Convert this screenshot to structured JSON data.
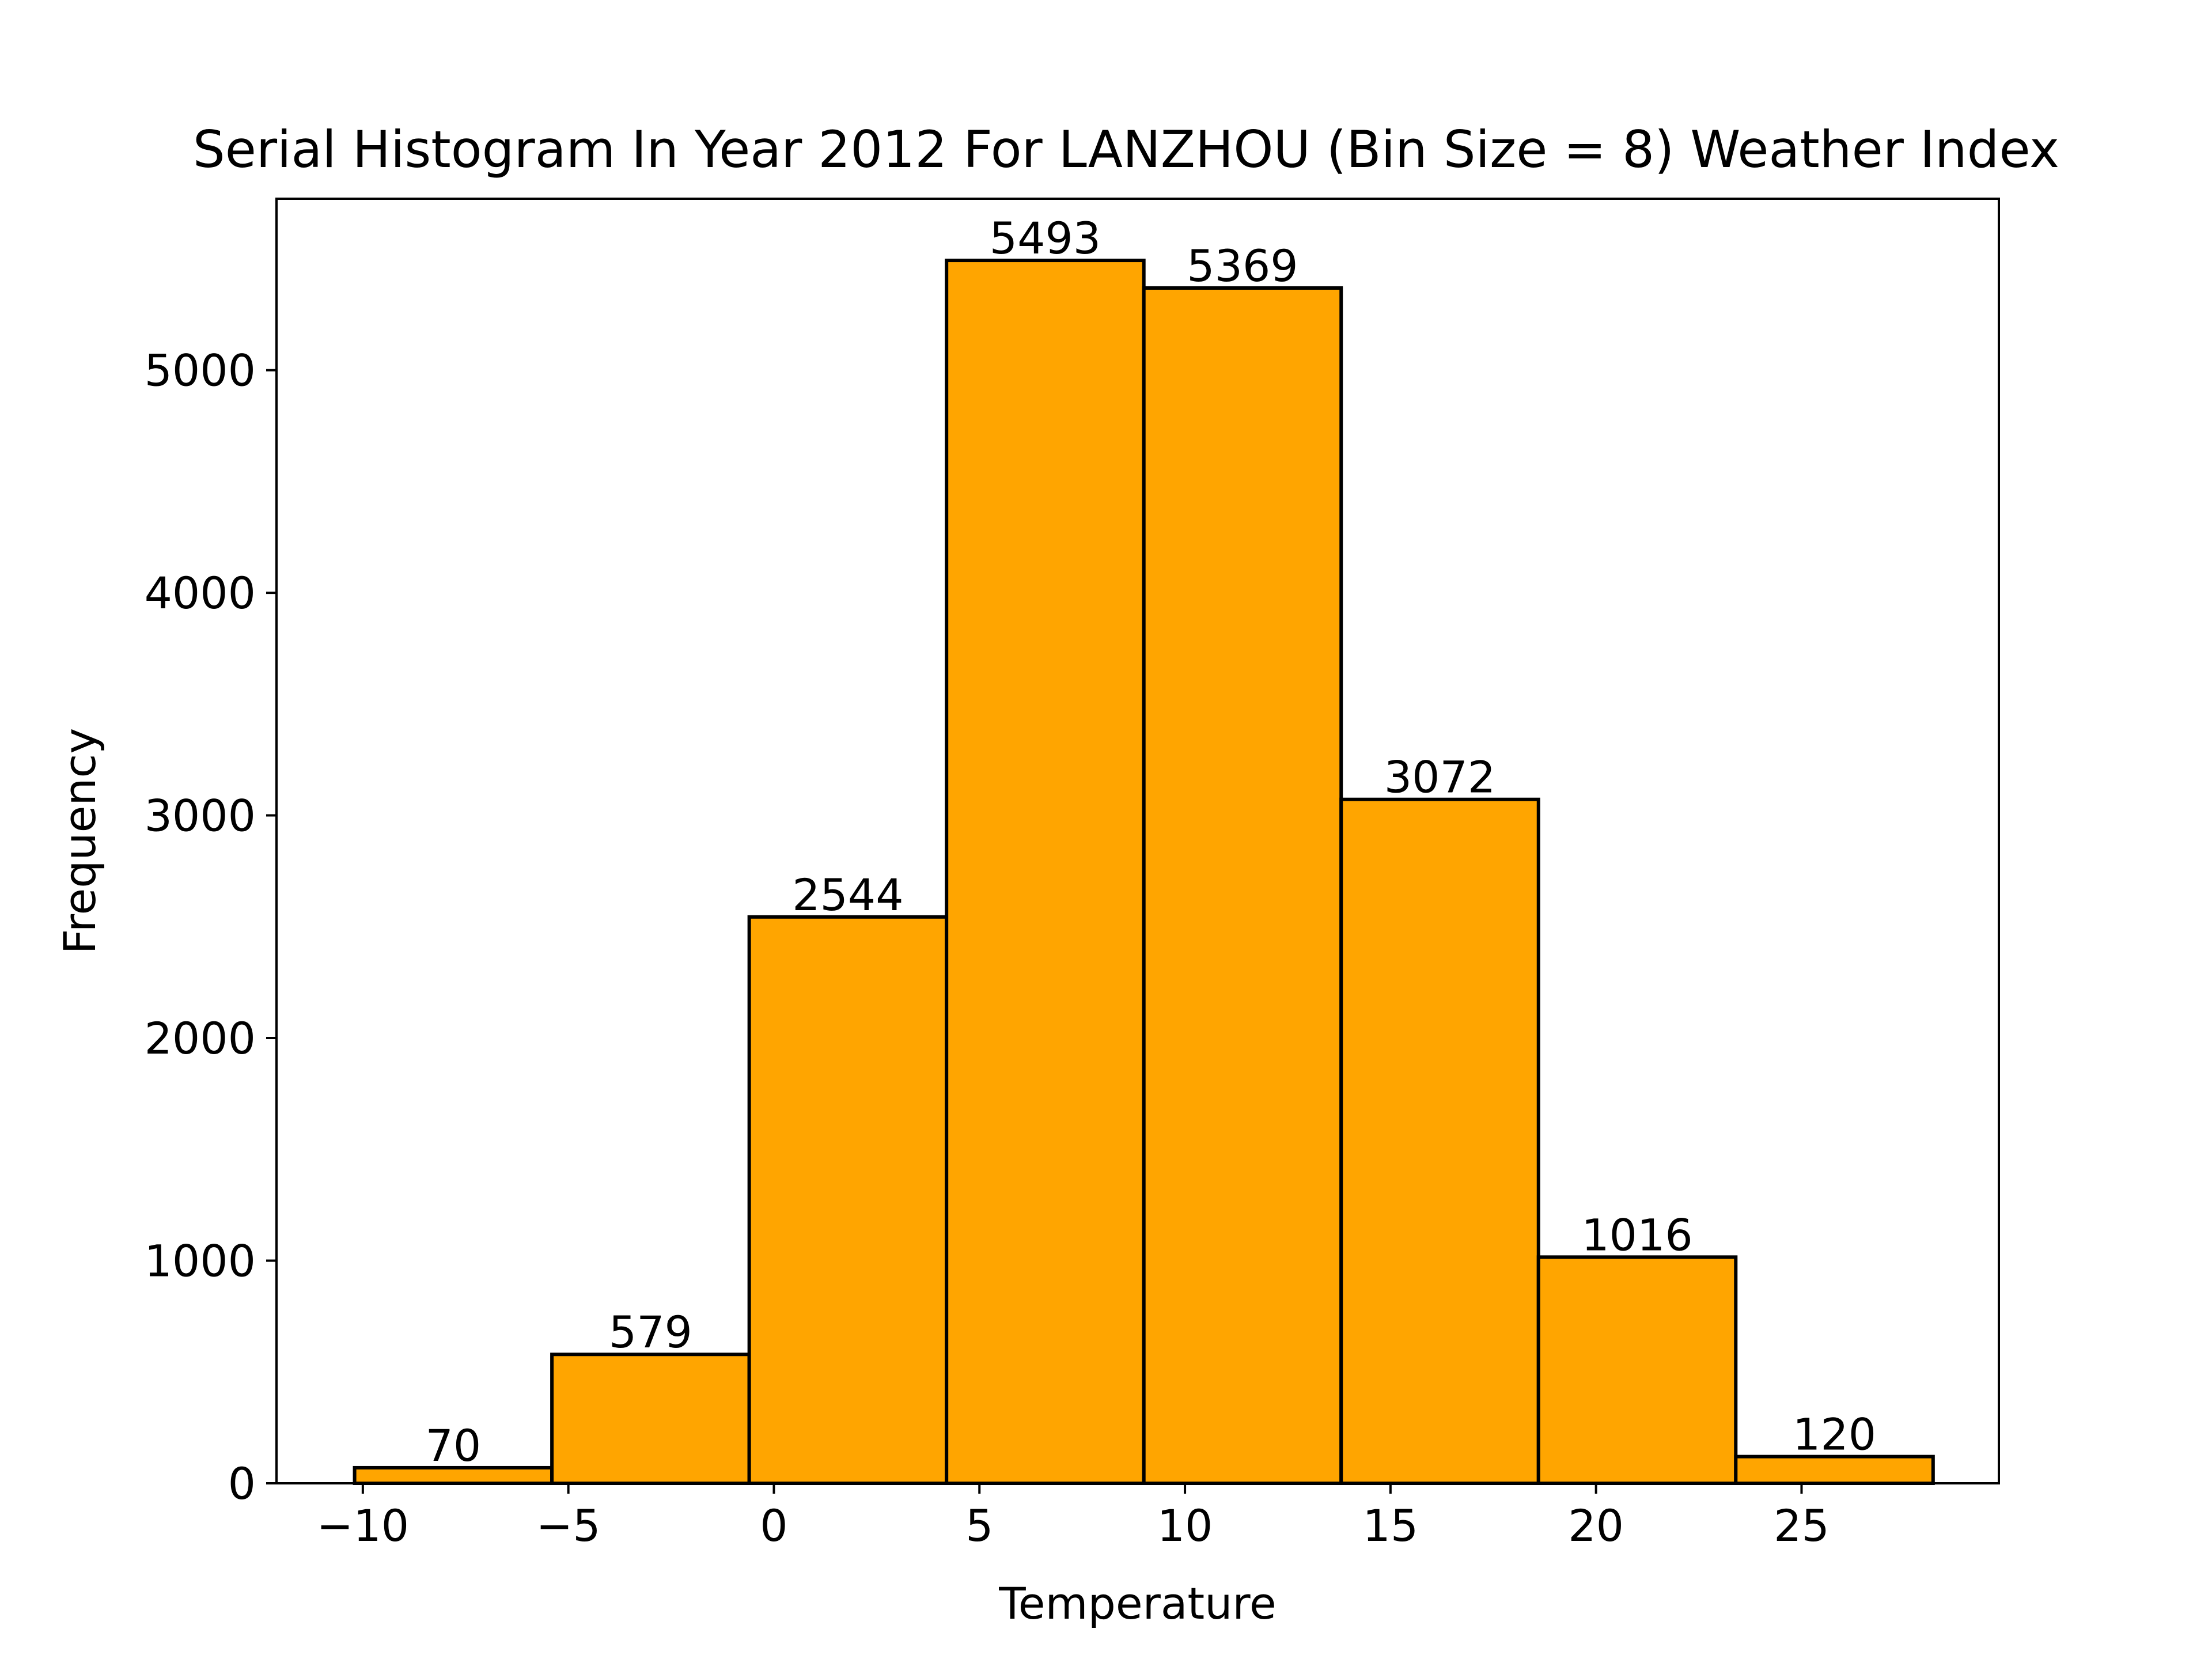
{
  "chart_data": {
    "type": "bar",
    "title": "Serial Histogram In Year 2012 For LANZHOU (Bin Size = 8) Weather Index",
    "xlabel": "Temperature",
    "ylabel": "Frequency",
    "bins": [
      {
        "x0": -10.2,
        "x1": -5.4,
        "value": 70
      },
      {
        "x0": -5.4,
        "x1": -0.6,
        "value": 579
      },
      {
        "x0": -0.6,
        "x1": 4.2,
        "value": 2544
      },
      {
        "x0": 4.2,
        "x1": 9.0,
        "value": 5493
      },
      {
        "x0": 9.0,
        "x1": 13.8,
        "value": 5369
      },
      {
        "x0": 13.8,
        "x1": 18.6,
        "value": 3072
      },
      {
        "x0": 18.6,
        "x1": 23.4,
        "value": 1016
      },
      {
        "x0": 23.4,
        "x1": 28.2,
        "value": 120
      }
    ],
    "data_labels": [
      "70",
      "579",
      "2544",
      "5493",
      "5369",
      "3072",
      "1016",
      "120"
    ],
    "xlim": [
      -12.1,
      29.8
    ],
    "ylim": [
      0,
      5770
    ],
    "x_ticks": [
      -10,
      -5,
      0,
      5,
      10,
      15,
      20,
      25
    ],
    "x_tick_labels": [
      "−10",
      "−5",
      "0",
      "5",
      "10",
      "15",
      "20",
      "25"
    ],
    "y_ticks": [
      0,
      1000,
      2000,
      3000,
      4000,
      5000
    ],
    "y_tick_labels": [
      "0",
      "1000",
      "2000",
      "3000",
      "4000",
      "5000"
    ],
    "grid": false,
    "legend": "none",
    "colors": {
      "bar_fill": "#FFA500",
      "bar_edge": "#000000"
    }
  }
}
